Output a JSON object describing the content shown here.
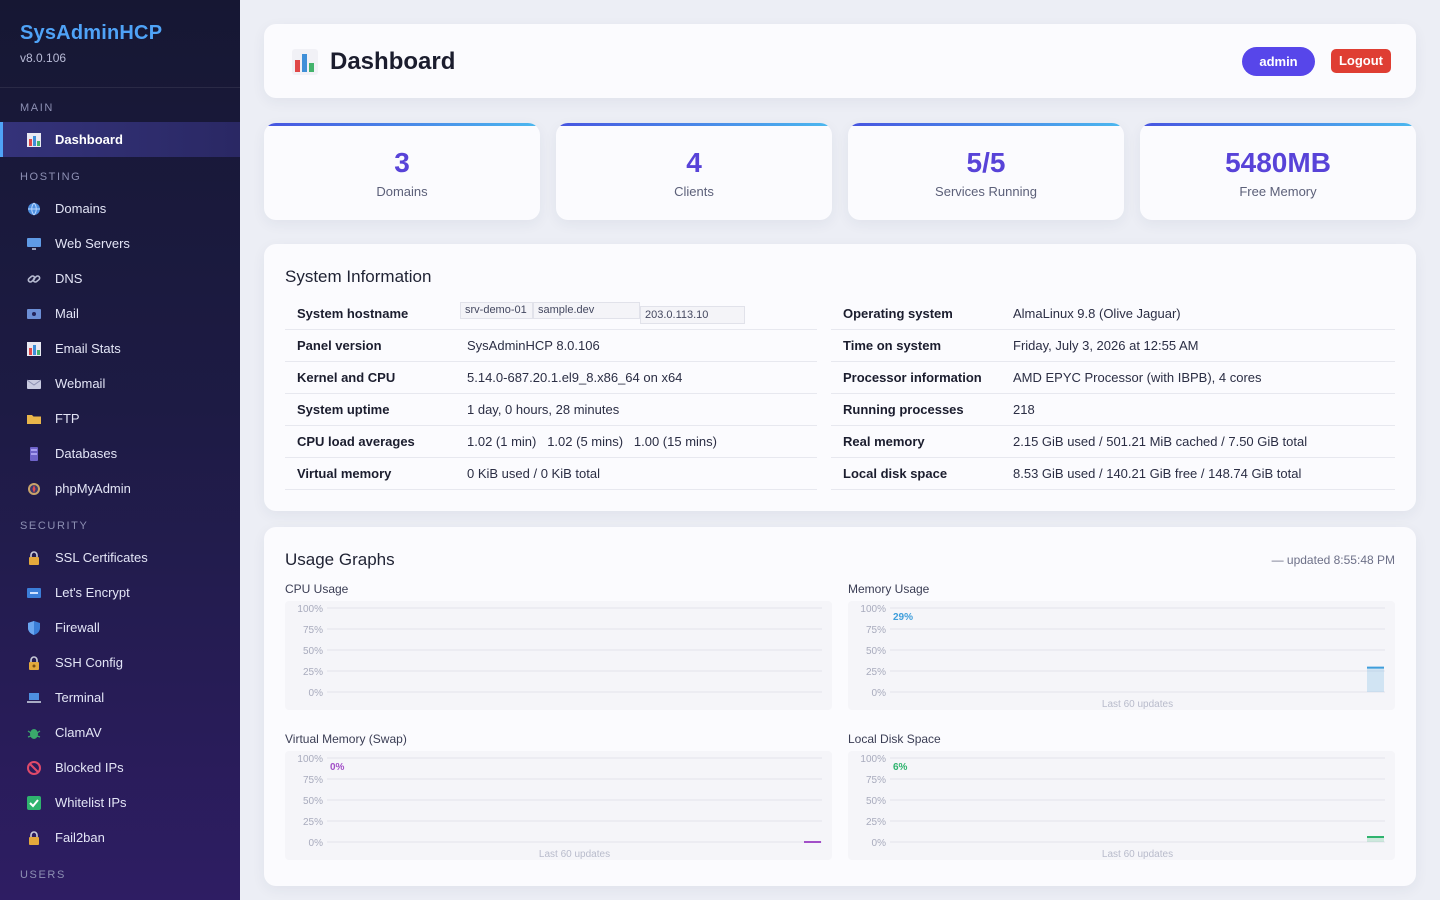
{
  "sidebar": {
    "brand": "SysAdminHCP",
    "version": "v8.0.106",
    "sections": {
      "main": "MAIN",
      "hosting": "HOSTING",
      "security": "SECURITY",
      "users": "USERS"
    },
    "items": {
      "dashboard": "Dashboard",
      "domains": "Domains",
      "web_servers": "Web Servers",
      "dns": "DNS",
      "mail": "Mail",
      "email_stats": "Email Stats",
      "webmail": "Webmail",
      "ftp": "FTP",
      "databases": "Databases",
      "phpmyadmin": "phpMyAdmin",
      "ssl": "SSL Certificates",
      "letsencrypt": "Let's Encrypt",
      "firewall": "Firewall",
      "ssh": "SSH Config",
      "terminal": "Terminal",
      "clamav": "ClamAV",
      "blocked": "Blocked IPs",
      "whitelist": "Whitelist IPs",
      "fail2ban": "Fail2ban"
    },
    "icons": {
      "dashboard": "bar-chart-icon",
      "domains": "globe-icon",
      "web_servers": "monitor-icon",
      "dns": "link-icon",
      "mail": "mailbox-icon",
      "email_stats": "bar-chart-icon",
      "webmail": "envelope-icon",
      "ftp": "folder-icon",
      "databases": "database-icon",
      "phpmyadmin": "compass-icon",
      "ssl": "lock-icon",
      "letsencrypt": "badge-icon",
      "firewall": "shield-icon",
      "ssh": "lock-key-icon",
      "terminal": "laptop-icon",
      "clamav": "bug-icon",
      "blocked": "no-entry-icon",
      "whitelist": "check-box-icon",
      "fail2ban": "lock-icon"
    }
  },
  "header": {
    "title": "Dashboard",
    "user_button": "admin",
    "logout_button": "Logout"
  },
  "stats": [
    {
      "value": "3",
      "label": "Domains"
    },
    {
      "value": "4",
      "label": "Clients"
    },
    {
      "value": "5/5",
      "label": "Services Running"
    },
    {
      "value": "5480MB",
      "label": "Free Memory"
    }
  ],
  "system_info": {
    "title": "System Information",
    "hostname_label": "System hostname",
    "hostname_parts": [
      "srv-demo-01",
      "sample.dev",
      "203.0.113.10"
    ],
    "left": [
      {
        "label": "Panel version",
        "value": "SysAdminHCP 8.0.106"
      },
      {
        "label": "Kernel and CPU",
        "value": "5.14.0-687.20.1.el9_8.x86_64 on x64"
      },
      {
        "label": "System uptime",
        "value": "1 day, 0 hours, 28 minutes"
      },
      {
        "label": "CPU load averages",
        "value": "1.02 (1 min)   1.02 (5 mins)   1.00 (15 mins)"
      },
      {
        "label": "Virtual memory",
        "value": "0 KiB used / 0 KiB total"
      }
    ],
    "right": [
      {
        "label": "Operating system",
        "value": "AlmaLinux 9.8 (Olive Jaguar)"
      },
      {
        "label": "Time on system",
        "value": "Friday, July 3, 2026 at 12:55 AM"
      },
      {
        "label": "Processor information",
        "value": "AMD EPYC Processor (with IBPB), 4 cores"
      },
      {
        "label": "Running processes",
        "value": "218"
      },
      {
        "label": "Real memory",
        "value": "2.15 GiB used / 501.21 MiB cached / 7.50 GiB total"
      },
      {
        "label": "Local disk space",
        "value": "8.53 GiB used / 140.21 GiB free / 148.74 GiB total"
      }
    ]
  },
  "usage": {
    "title": "Usage Graphs",
    "updated": "— updated 8:55:48 PM",
    "graphs": [
      {
        "title": "CPU Usage",
        "current": "",
        "color": "#3f8fd8",
        "footer": "",
        "value": null
      },
      {
        "title": "Memory Usage",
        "current": "29%",
        "color": "#3f9edb",
        "footer": "Last 60 updates",
        "value": 29
      },
      {
        "title": "Virtual Memory (Swap)",
        "current": "0%",
        "color": "#a24fc8",
        "footer": "Last 60 updates",
        "value": 0
      },
      {
        "title": "Local Disk Space",
        "current": "6%",
        "color": "#2fb36e",
        "footer": "Last 60 updates",
        "value": 6
      }
    ],
    "ticks": [
      "100%",
      "75%",
      "50%",
      "25%",
      "0%"
    ]
  },
  "colors": {
    "accent": "#5843d8",
    "admin_button": "#5746ea",
    "logout_button": "#df3e33",
    "brand": "#4fa3f7"
  }
}
